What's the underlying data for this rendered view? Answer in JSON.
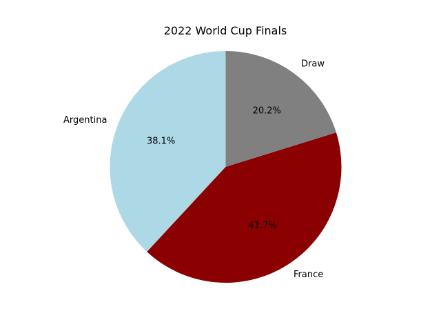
{
  "chart_data": {
    "type": "pie",
    "title": "2022 World Cup Finals",
    "categories": [
      "Argentina",
      "France",
      "Draw"
    ],
    "values": [
      38.1,
      41.7,
      20.2
    ],
    "colors": [
      "#add8e6",
      "#8b0000",
      "#808080"
    ],
    "start_angle_deg": 90,
    "direction": "counterclockwise",
    "autopct": true
  }
}
